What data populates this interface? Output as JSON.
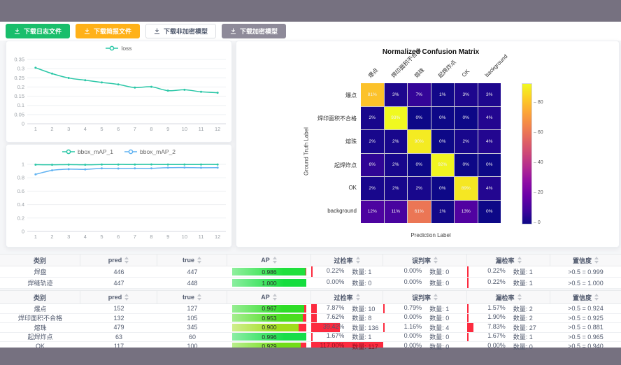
{
  "frame_color": "#767180",
  "toolbar": {
    "buttons": [
      {
        "id": "download-log-button",
        "label": "下载日志文件",
        "bg": "#19be6b",
        "fg": "#ffffff",
        "border": "#19be6b"
      },
      {
        "id": "download-report-button",
        "label": "下载简报文件",
        "bg": "#ffb118",
        "fg": "#ffffff",
        "border": "#ffb118"
      },
      {
        "id": "download-plain-model-button",
        "label": "下载非加密模型",
        "bg": "#ffffff",
        "fg": "#515a6e",
        "border": "#dcdee2"
      },
      {
        "id": "download-encrypted-model-button",
        "label": "下载加密模型",
        "bg": "#8e8a99",
        "fg": "#ffffff",
        "border": "#8e8a99"
      }
    ]
  },
  "chart_data": [
    {
      "id": "loss",
      "type": "line",
      "title": "",
      "xlabel": "",
      "ylabel": "",
      "x": [
        1,
        2,
        3,
        4,
        5,
        6,
        7,
        8,
        9,
        10,
        11,
        12
      ],
      "series": [
        {
          "name": "loss",
          "color": "#2bc7a7",
          "values": [
            0.305,
            0.273,
            0.249,
            0.237,
            0.225,
            0.214,
            0.197,
            0.201,
            0.18,
            0.185,
            0.174,
            0.169
          ]
        }
      ],
      "ylim": [
        0,
        0.35
      ],
      "yticks": [
        0,
        0.05,
        0.1,
        0.15,
        0.2,
        0.25,
        0.3,
        0.35
      ],
      "grid": true,
      "legend_position": "top"
    },
    {
      "id": "bbox_map",
      "type": "line",
      "title": "",
      "xlabel": "",
      "ylabel": "",
      "x": [
        1,
        2,
        3,
        4,
        5,
        6,
        7,
        8,
        9,
        10,
        11,
        12
      ],
      "series": [
        {
          "name": "bbox_mAP_1",
          "color": "#2bc7a7",
          "values": [
            0.995,
            0.993,
            0.996,
            0.993,
            0.997,
            0.998,
            0.998,
            0.999,
            0.997,
            0.997,
            0.998,
            0.998
          ]
        },
        {
          "name": "bbox_mAP_2",
          "color": "#61b3f2",
          "values": [
            0.85,
            0.91,
            0.928,
            0.925,
            0.94,
            0.937,
            0.94,
            0.94,
            0.95,
            0.952,
            0.949,
            0.95
          ]
        }
      ],
      "ylim": [
        0,
        1
      ],
      "yticks": [
        0,
        0.2,
        0.4,
        0.6,
        0.8,
        1
      ],
      "grid": true,
      "legend_position": "top"
    },
    {
      "id": "confusion_matrix",
      "type": "heatmap",
      "title": "Normalized Confusion Matrix",
      "xlabel": "Prediction Label",
      "ylabel": "Ground Truth Label",
      "labels": [
        "爆点",
        "焊印面积不合格",
        "熔珠",
        "起焊炸点",
        "OK",
        "background"
      ],
      "values_pct": [
        [
          81,
          3,
          7,
          1,
          3,
          3
        ],
        [
          2,
          93,
          0,
          0,
          0,
          4
        ],
        [
          2,
          2,
          90,
          0,
          2,
          4
        ],
        [
          6,
          2,
          0,
          92,
          0,
          0
        ],
        [
          2,
          2,
          2,
          0,
          89,
          4
        ],
        [
          12,
          11,
          61,
          1,
          13,
          0
        ]
      ],
      "vmin": 0,
      "vmax": 93,
      "colormap": "plasma",
      "colorbar_ticks": [
        0,
        20,
        40,
        60,
        80
      ]
    }
  ],
  "tables": [
    {
      "headers": [
        "类别",
        "pred",
        "true",
        "AP",
        "过检率",
        "误判率",
        "漏检率",
        "置信度"
      ],
      "sortable": [
        false,
        true,
        true,
        true,
        true,
        true,
        true,
        true
      ],
      "rows": [
        {
          "category": "焊盘",
          "pred": "446",
          "true": "447",
          "ap": "0.986",
          "ap_value": 98.6,
          "ap_color": "#1fe03c",
          "over_pct": "0.22%",
          "over_count": "数量: 1",
          "over_value": 0.22,
          "mis_pct": "0.00%",
          "mis_count": "数量: 0",
          "mis_value": 0,
          "miss_pct": "0.22%",
          "miss_count": "数量: 1",
          "miss_value": 0.22,
          "confidence": ">0.5 = 0.999"
        },
        {
          "category": "焊缝轨迹",
          "pred": "447",
          "true": "448",
          "ap": "1.000",
          "ap_value": 100,
          "ap_color": "#15dd3e",
          "over_pct": "0.00%",
          "over_count": "数量: 0",
          "over_value": 0,
          "mis_pct": "0.00%",
          "mis_count": "数量: 0",
          "mis_value": 0,
          "miss_pct": "0.22%",
          "miss_count": "数量: 1",
          "miss_value": 0.22,
          "confidence": ">0.5 = 1.000"
        }
      ]
    },
    {
      "headers": [
        "类别",
        "pred",
        "true",
        "AP",
        "过检率",
        "误判率",
        "漏检率",
        "置信度"
      ],
      "sortable": [
        false,
        true,
        true,
        true,
        true,
        true,
        true,
        true
      ],
      "rows": [
        {
          "category": "爆点",
          "pred": "152",
          "true": "127",
          "ap": "0.967",
          "ap_value": 96.7,
          "ap_color": "#2edd27",
          "over_pct": "7.87%",
          "over_count": "数量: 10",
          "over_value": 7.87,
          "mis_pct": "0.79%",
          "mis_count": "数量: 1",
          "mis_value": 0.79,
          "miss_pct": "1.57%",
          "miss_count": "数量: 2",
          "miss_value": 1.57,
          "confidence": ">0.5 = 0.924"
        },
        {
          "category": "焊印面积不合格",
          "pred": "132",
          "true": "105",
          "ap": "0.953",
          "ap_value": 95.3,
          "ap_color": "#4bdd1f",
          "over_pct": "7.62%",
          "over_count": "数量: 8",
          "over_value": 7.62,
          "mis_pct": "0.00%",
          "mis_count": "数量: 0",
          "mis_value": 0,
          "miss_pct": "1.90%",
          "miss_count": "数量: 2",
          "miss_value": 1.9,
          "confidence": ">0.5 = 0.925"
        },
        {
          "category": "熔珠",
          "pred": "479",
          "true": "345",
          "ap": "0.900",
          "ap_value": 90,
          "ap_color": "#a0dd1b",
          "over_pct": "39.42%",
          "over_count": "数量: 136",
          "over_value": 39.42,
          "mis_pct": "1.16%",
          "mis_count": "数量: 4",
          "mis_value": 1.16,
          "miss_pct": "7.83%",
          "miss_count": "数量: 27",
          "miss_value": 7.83,
          "confidence": ">0.5 = 0.881"
        },
        {
          "category": "起焊炸点",
          "pred": "63",
          "true": "60",
          "ap": "0.996",
          "ap_value": 99.6,
          "ap_color": "#17dd49",
          "over_pct": "1.67%",
          "over_count": "数量: 1",
          "over_value": 1.67,
          "mis_pct": "0.00%",
          "mis_count": "数量: 0",
          "mis_value": 0,
          "miss_pct": "1.67%",
          "miss_count": "数量: 1",
          "miss_value": 1.67,
          "confidence": ">0.5 = 0.965"
        },
        {
          "category": "OK",
          "pred": "117",
          "true": "100",
          "ap": "0.929",
          "ap_value": 92.9,
          "ap_color": "#72dd19",
          "over_pct": "117.00%",
          "over_count": "数量: 117",
          "over_value": 117,
          "mis_pct": "0.00%",
          "mis_count": "数量: 0",
          "mis_value": 0,
          "miss_pct": "0.00%",
          "miss_count": "数量: 0",
          "miss_value": 0,
          "confidence": ">0.5 = 0.940"
        }
      ]
    }
  ],
  "colors": {
    "bar_red": "#fc2b3f",
    "over_limit_text": "#8b1020"
  }
}
